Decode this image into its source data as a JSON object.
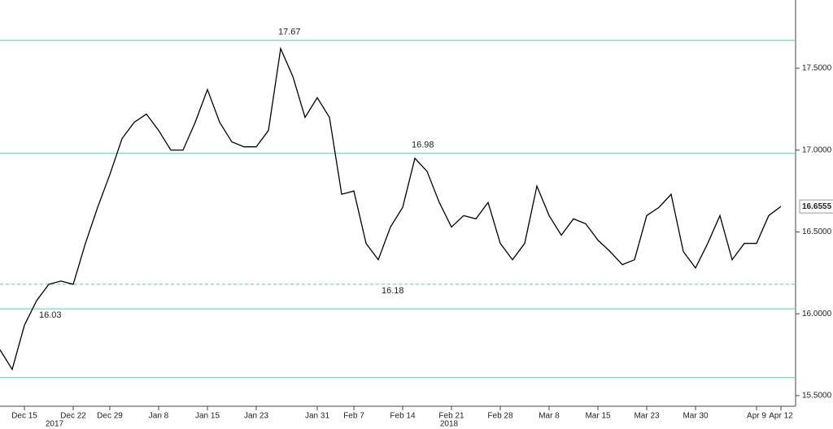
{
  "chart_data": {
    "type": "line",
    "categories": [
      null,
      null,
      "Dec 15",
      null,
      null,
      null,
      "Dec 22",
      null,
      null,
      "Dec 29",
      null,
      null,
      null,
      "Jan 8",
      null,
      null,
      null,
      "Jan 15",
      null,
      null,
      null,
      "Jan 23",
      null,
      null,
      null,
      null,
      "Jan 31",
      null,
      null,
      "Feb 7",
      null,
      null,
      null,
      "Feb 14",
      null,
      null,
      null,
      "Feb 21",
      null,
      null,
      null,
      "Feb 28",
      null,
      null,
      null,
      "Mar 8",
      null,
      null,
      null,
      "Mar 15",
      null,
      null,
      null,
      "Mar 23",
      null,
      null,
      null,
      "Mar 30",
      null,
      null,
      null,
      null,
      "Apr 9",
      null,
      "Apr 12"
    ],
    "year_labels": [
      "2017",
      "2018"
    ],
    "series": [
      {
        "color": "#000000",
        "values": [
          15.78,
          15.66,
          15.93,
          16.08,
          16.18,
          16.2,
          16.18,
          16.43,
          16.65,
          16.85,
          17.07,
          17.17,
          17.22,
          17.12,
          17.0,
          17.0,
          17.17,
          17.37,
          17.17,
          17.05,
          17.02,
          17.02,
          17.12,
          17.62,
          17.45,
          17.2,
          17.32,
          17.2,
          16.73,
          16.75,
          16.43,
          16.33,
          16.53,
          16.65,
          16.95,
          16.87,
          16.68,
          16.53,
          16.6,
          16.58,
          16.68,
          16.43,
          16.33,
          16.43,
          16.78,
          16.6,
          16.48,
          16.58,
          16.55,
          16.45,
          16.38,
          16.3,
          16.33,
          16.6,
          16.65,
          16.73,
          16.38,
          16.28,
          16.43,
          16.6,
          16.33,
          16.43,
          16.43,
          16.6,
          16.6555
        ]
      }
    ],
    "reference_lines": [
      {
        "value": 17.67,
        "style": "solid",
        "labeled": true
      },
      {
        "value": 16.98,
        "style": "solid",
        "labeled": true
      },
      {
        "value": 16.18,
        "style": "dashed",
        "labeled": true
      },
      {
        "value": 16.03,
        "style": "solid",
        "labeled": true
      },
      {
        "value": 15.61,
        "style": "solid",
        "labeled": false
      }
    ],
    "reference_color": "#5cc8b4",
    "ylim": [
      15.435,
      17.917
    ],
    "yticks": [
      {
        "value": 15.5,
        "label": "15.5000"
      },
      {
        "value": 16.0,
        "label": "16.0000"
      },
      {
        "value": 16.5,
        "label": "16.5000"
      },
      {
        "value": 17.0,
        "label": "17.0000"
      },
      {
        "value": 17.5,
        "label": "17.5000"
      }
    ]
  }
}
